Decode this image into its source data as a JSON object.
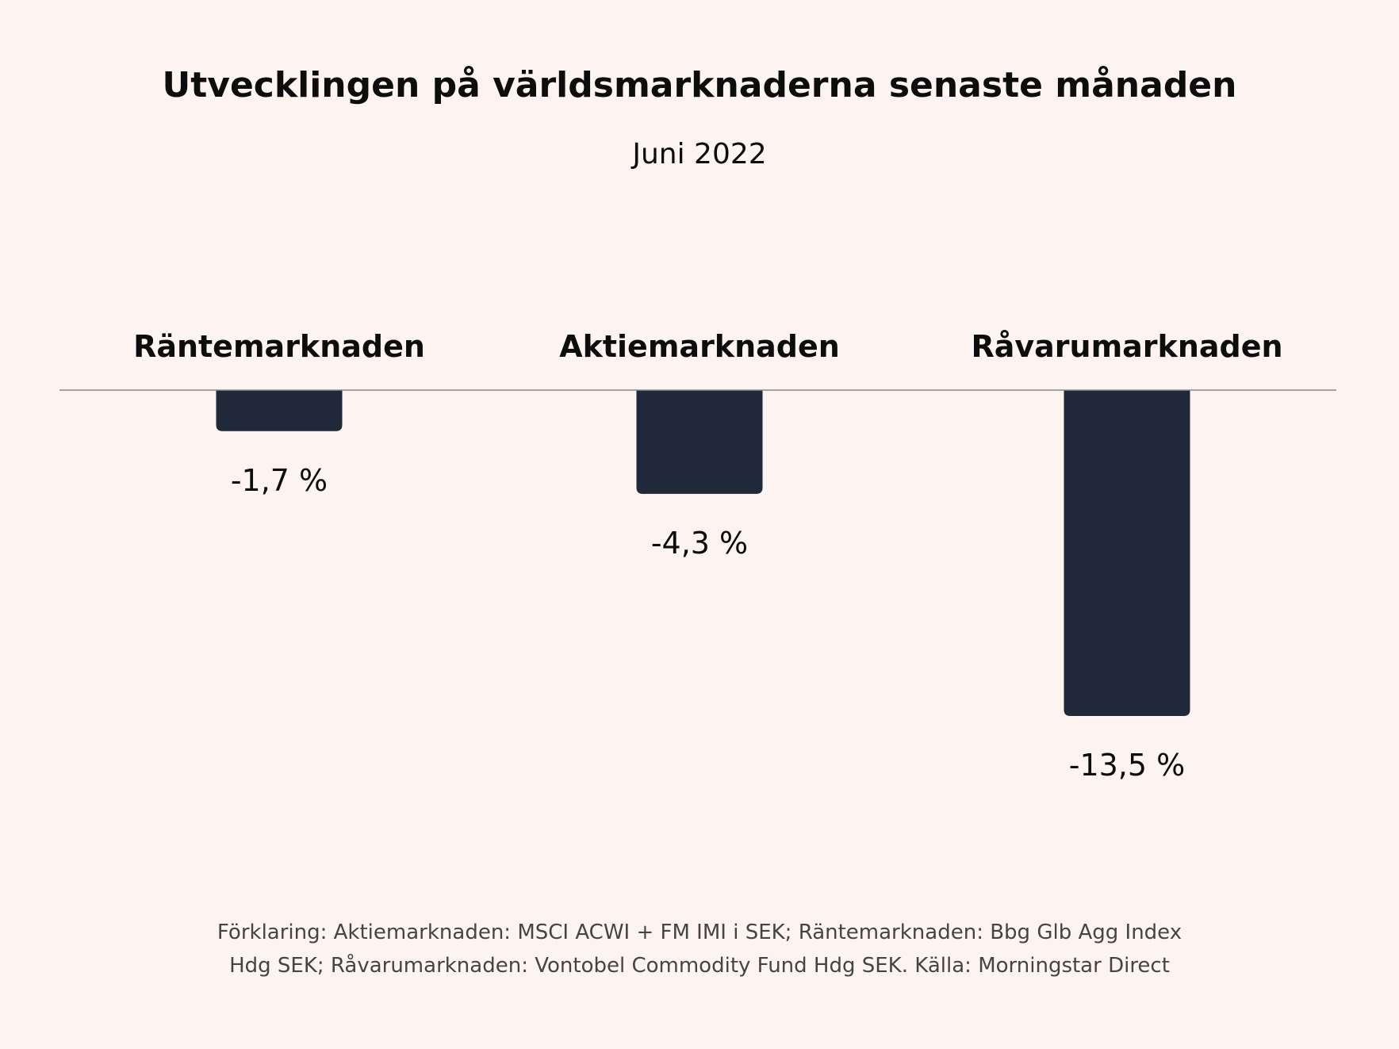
{
  "title": "Utvecklingen på världsmarknaderna senaste månaden",
  "subtitle": "Juni 2022",
  "chart_data": {
    "type": "bar",
    "title": "Utvecklingen på världsmarknaderna senaste månaden",
    "subtitle": "Juni 2022",
    "categories": [
      "Räntemarknaden",
      "Aktiemarknaden",
      "Råvarumarknaden"
    ],
    "values": [
      -1.7,
      -4.3,
      -13.5
    ],
    "value_labels": [
      "-1,7 %",
      "-4,3 %",
      "-13,5 %"
    ],
    "unit": "%",
    "xlabel": "",
    "ylabel": "",
    "ylim": [
      -13.5,
      0
    ],
    "grid": false,
    "bar_color": "#1f2939",
    "background": "#fdf3f1"
  },
  "footer": {
    "line1": "Förklaring: Aktiemarknaden: MSCI ACWI + FM IMI i SEK; Räntemarknaden: Bbg Glb Agg Index",
    "line2": "Hdg SEK; Råvarumarknaden: Vontobel Commodity Fund Hdg SEK. Källa: Morningstar Direct"
  }
}
